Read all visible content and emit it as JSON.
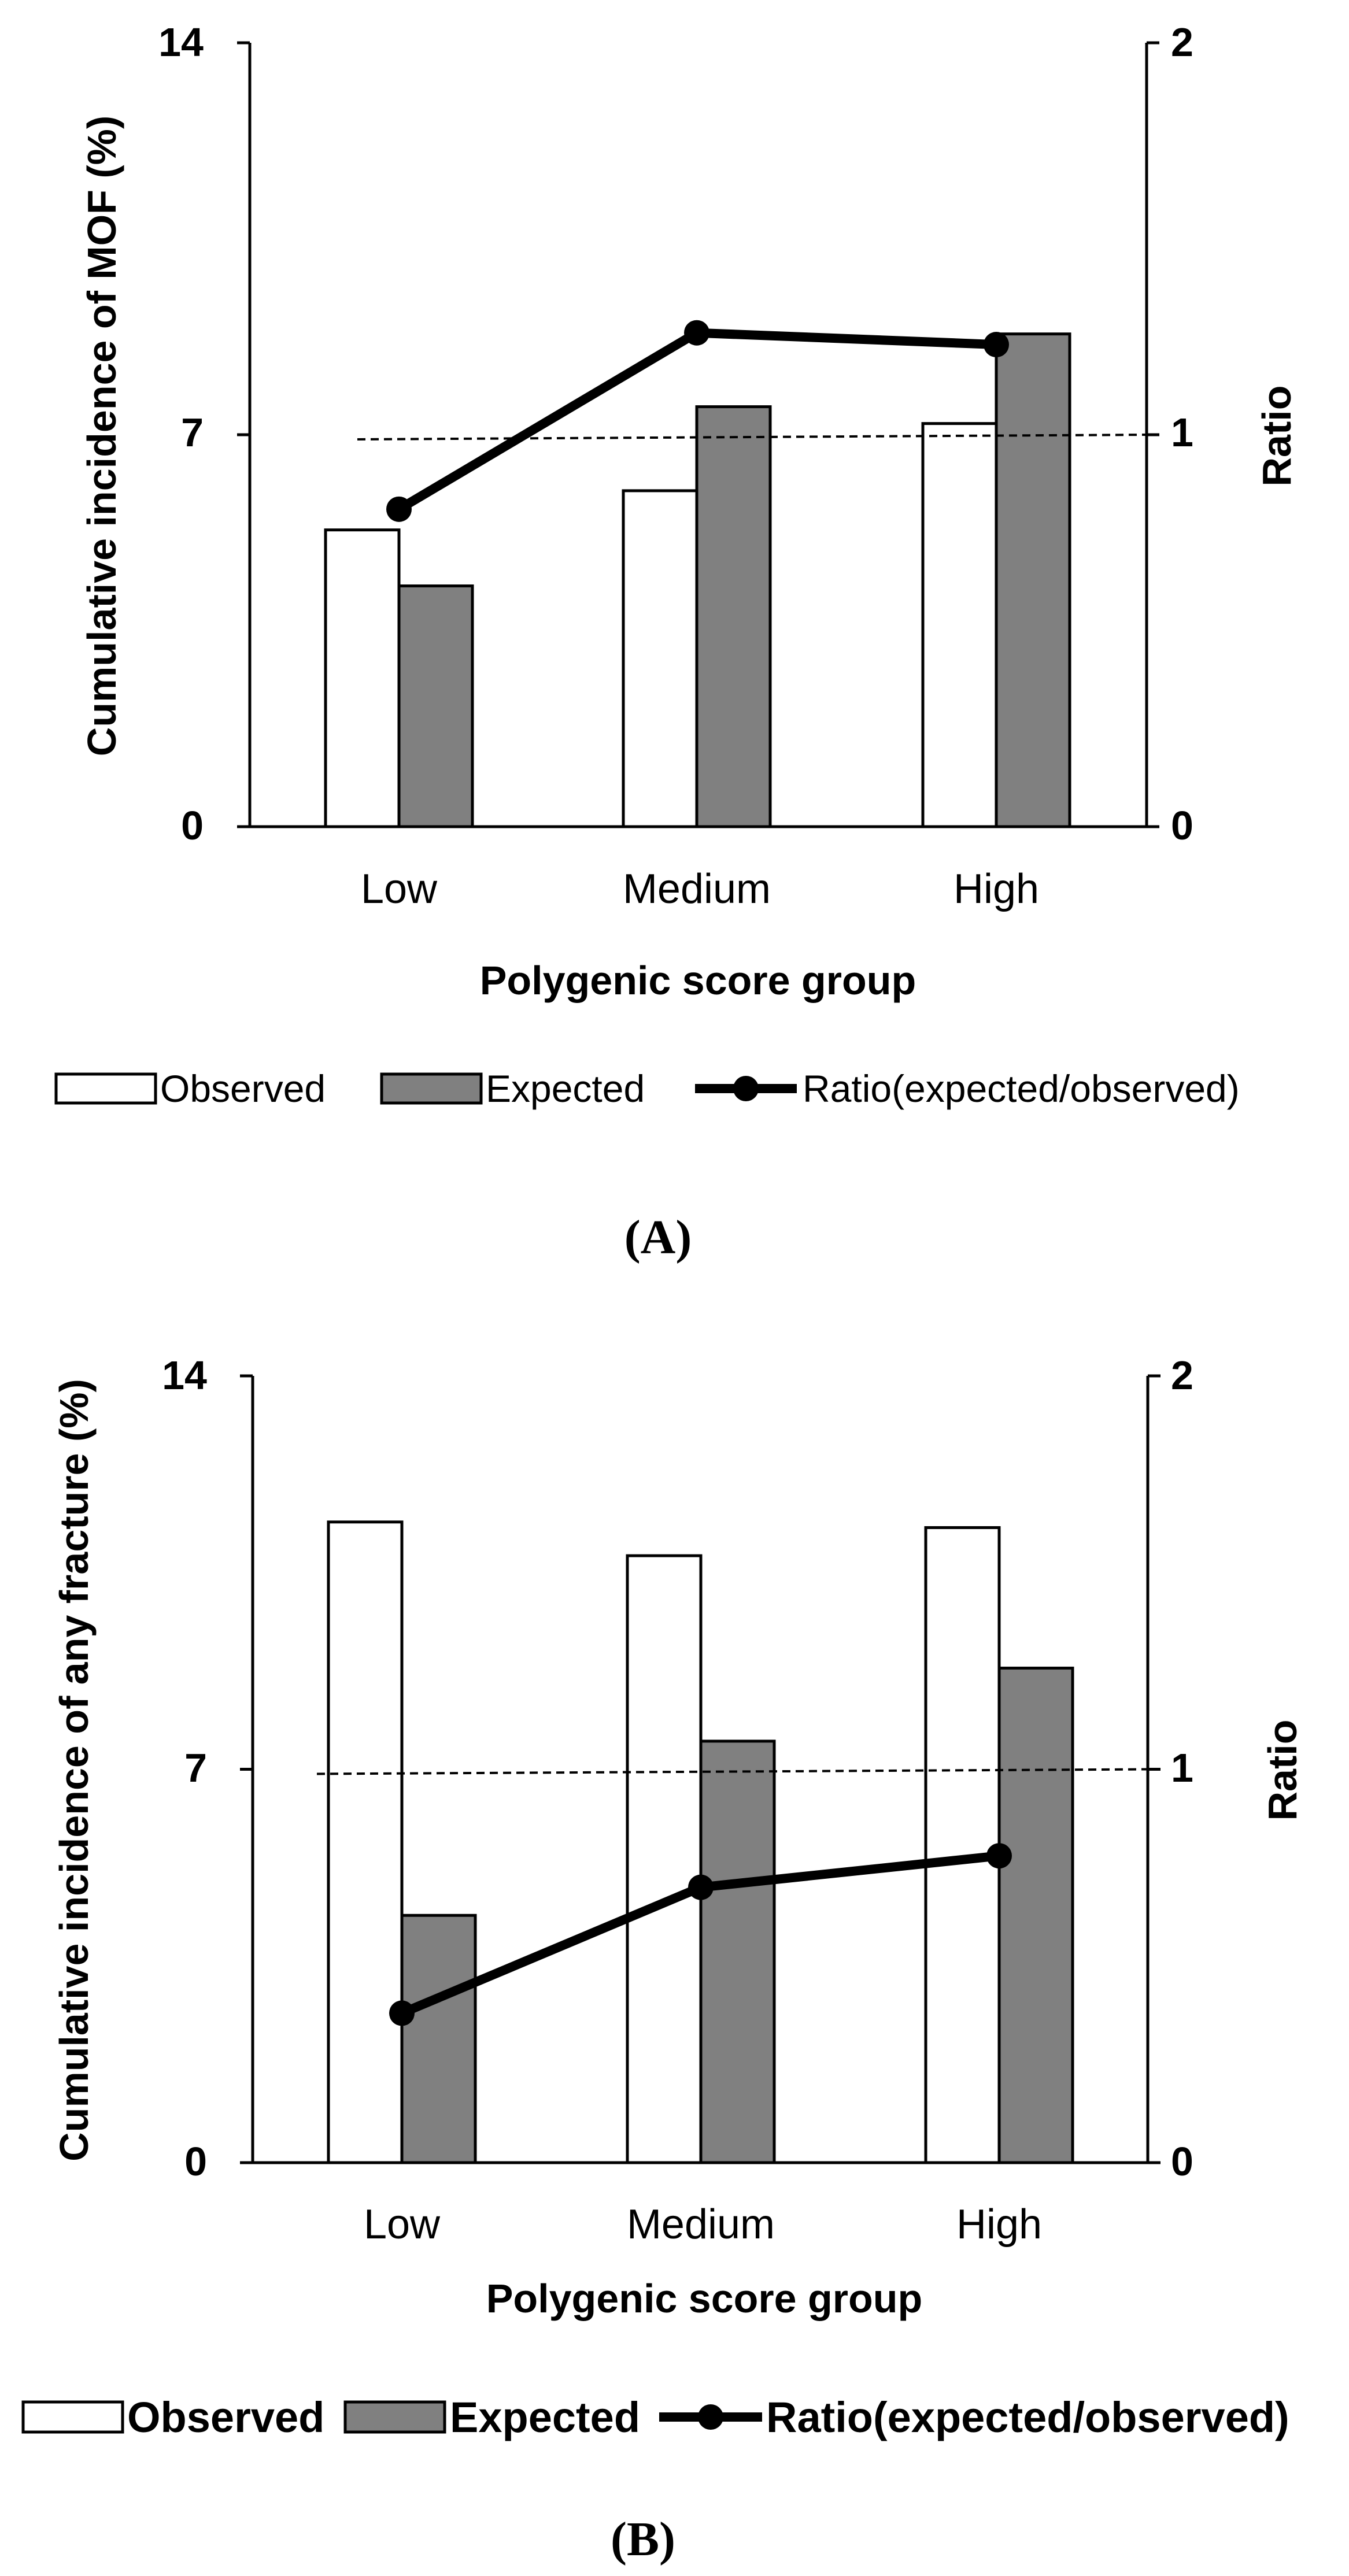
{
  "chart_data": [
    {
      "panel": "A",
      "type": "bar",
      "caption": "(A)",
      "categories": [
        "Low",
        "Medium",
        "High"
      ],
      "series": [
        {
          "name": "Observed",
          "kind": "bar",
          "axis": "left",
          "color": "#ffffff",
          "values": [
            5.3,
            6.0,
            7.2
          ]
        },
        {
          "name": "Expected",
          "kind": "bar",
          "axis": "left",
          "color": "#808080",
          "values": [
            4.3,
            7.5,
            8.8
          ]
        },
        {
          "name": "Ratio(expected/observed)",
          "kind": "line",
          "axis": "right",
          "color": "#000000",
          "values": [
            0.81,
            1.26,
            1.23
          ]
        }
      ],
      "reference_line": {
        "axis": "right",
        "value": 1,
        "style": "dashed"
      },
      "xlabel": "Polygenic score group",
      "ylabel": "Cumulative incidence of MOF (%)",
      "y2label": "Ratio",
      "ylim": [
        0,
        14
      ],
      "y2lim": [
        0,
        2
      ],
      "yticks": [
        "0",
        "7",
        "14"
      ],
      "y2ticks": [
        "0",
        "1",
        "2"
      ],
      "legend_position": "bottom"
    },
    {
      "panel": "B",
      "type": "bar",
      "caption": "(B)",
      "categories": [
        "Low",
        "Medium",
        "High"
      ],
      "series": [
        {
          "name": "Observed",
          "kind": "bar",
          "axis": "left",
          "color": "#ffffff",
          "values": [
            11.4,
            10.8,
            11.3
          ]
        },
        {
          "name": "Expected",
          "kind": "bar",
          "axis": "left",
          "color": "#808080",
          "values": [
            4.4,
            7.5,
            8.8
          ]
        },
        {
          "name": "Ratio(expected/observed)",
          "kind": "line",
          "axis": "right",
          "color": "#000000",
          "values": [
            0.38,
            0.7,
            0.78
          ]
        }
      ],
      "reference_line": {
        "axis": "right",
        "value": 1,
        "style": "dashed"
      },
      "xlabel": "Polygenic score group",
      "ylabel": "Cumulative incidence of any fracture (%)",
      "y2label": "Ratio",
      "ylim": [
        0,
        14
      ],
      "y2lim": [
        0,
        2
      ],
      "yticks": [
        "0",
        "7",
        "14"
      ],
      "y2ticks": [
        "0",
        "1",
        "2"
      ],
      "legend_position": "bottom"
    }
  ]
}
